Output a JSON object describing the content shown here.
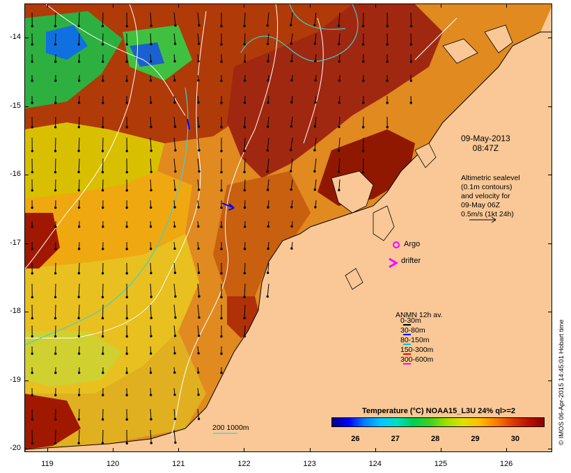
{
  "map": {
    "lon_ticks": [
      "119",
      "120",
      "121",
      "122",
      "123",
      "124",
      "125",
      "126"
    ],
    "lat_ticks": [
      "-14",
      "-15",
      "-16",
      "-17",
      "-18",
      "-19",
      "-20"
    ],
    "lon_range": [
      118.65,
      126.7
    ],
    "lat_range": [
      -20.05,
      -13.5
    ]
  },
  "annotations": {
    "date": [
      "09-May-2013",
      "08:47Z"
    ],
    "altimetry": [
      "Altimetric sealevel",
      "(0.1m contours)",
      "and velocity for",
      "09-May 06Z",
      "0.5m/s (1kt 24h)"
    ],
    "argo_label": "Argo",
    "drifter_label": "drifter"
  },
  "anmn_legend": {
    "title": "ANMN 12h av.",
    "items": [
      {
        "label": "0-30m",
        "color": "#000000"
      },
      {
        "label": "30-80m",
        "color": "#0000ff"
      },
      {
        "label": "80-150m",
        "color": "#00c8c8"
      },
      {
        "label": "150-300m",
        "color": "#ff0000"
      },
      {
        "label": "300-600m",
        "color": "#ff00ff"
      }
    ]
  },
  "depth_legend": "200  1000m",
  "colorbar": {
    "title": "Temperature (°C) NOAA15_L3U 24% ql>=2",
    "ticks": [
      "26",
      "27",
      "28",
      "29",
      "30"
    ],
    "range": [
      25.4,
      30.7
    ]
  },
  "credit": "© IMOS 06-Apr-2015 14:45:01 Hobart time",
  "colors": {
    "land": "#f9c896",
    "sst_hot": "#a01800",
    "sst_warm": "#d87010",
    "sst_mid": "#f0b000",
    "sst_cool": "#30b030",
    "sst_cold": "#1060e0"
  }
}
